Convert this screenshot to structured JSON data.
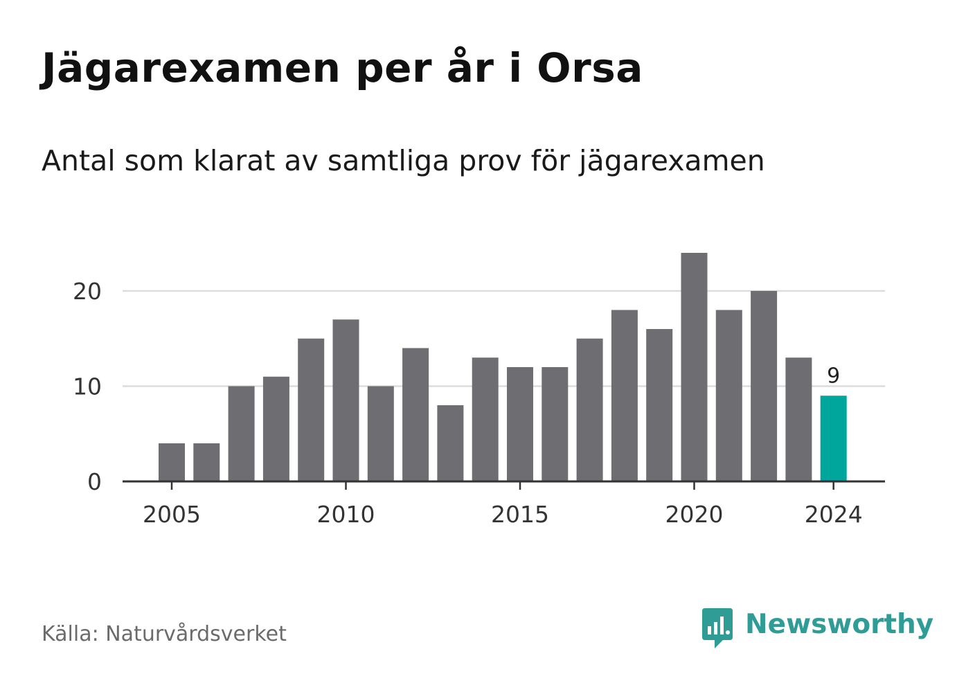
{
  "header": {
    "title": "Jägarexamen per år i Orsa",
    "subtitle": "Antal som klarat av samtliga prov för jägarexamen"
  },
  "chart_data": {
    "type": "bar",
    "title": "Jägarexamen per år i Orsa",
    "subtitle": "Antal som klarat av samtliga prov för jägarexamen",
    "xlabel": "",
    "ylabel": "",
    "categories": [
      2005,
      2006,
      2007,
      2008,
      2009,
      2010,
      2011,
      2012,
      2013,
      2014,
      2015,
      2016,
      2017,
      2018,
      2019,
      2020,
      2021,
      2022,
      2023,
      2024
    ],
    "values": [
      4,
      4,
      10,
      11,
      15,
      17,
      10,
      14,
      8,
      13,
      12,
      12,
      15,
      18,
      16,
      24,
      18,
      20,
      13,
      9
    ],
    "x_ticks": [
      2005,
      2010,
      2015,
      2020,
      2024
    ],
    "y_ticks": [
      0,
      10,
      20
    ],
    "ylim": [
      0,
      25
    ],
    "grid": true,
    "highlight": {
      "category": 2024,
      "label": "9"
    },
    "colors": {
      "bar": "#6e6d72",
      "highlight": "#00a69c",
      "grid": "#dcdcdc",
      "axis": "#333333"
    }
  },
  "footer": {
    "source": "Källa: Naturvårdsverket",
    "brand": "Newsworthy",
    "brand_icon": "bar-chart-speech-bubble-icon",
    "brand_color": "#2f9c96"
  }
}
